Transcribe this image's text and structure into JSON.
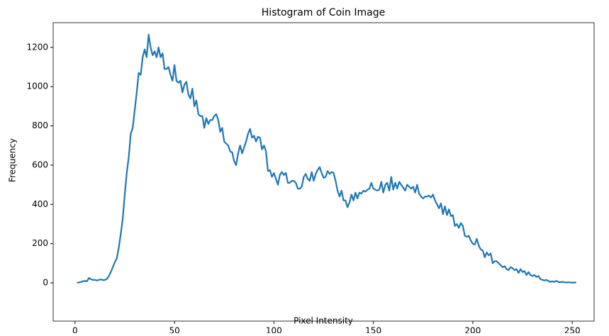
{
  "chart_data": {
    "type": "line",
    "title": "Histogram of Coin Image",
    "x_label": "Pixel Intensity",
    "y_label": "Frequency",
    "color": "#1f77b4",
    "grid": false,
    "x": [
      1,
      2,
      3,
      4,
      5,
      6,
      7,
      8,
      9,
      10,
      11,
      12,
      13,
      14,
      15,
      16,
      17,
      18,
      19,
      20,
      21,
      22,
      23,
      24,
      25,
      26,
      27,
      28,
      29,
      30,
      31,
      32,
      33,
      34,
      35,
      36,
      37,
      38,
      39,
      40,
      41,
      42,
      43,
      44,
      45,
      46,
      47,
      48,
      49,
      50,
      51,
      52,
      53,
      54,
      55,
      56,
      57,
      58,
      59,
      60,
      61,
      62,
      63,
      64,
      65,
      66,
      67,
      68,
      69,
      70,
      71,
      72,
      73,
      74,
      75,
      76,
      77,
      78,
      79,
      80,
      81,
      82,
      83,
      84,
      85,
      86,
      87,
      88,
      89,
      90,
      91,
      92,
      93,
      94,
      95,
      96,
      97,
      98,
      99,
      100,
      101,
      102,
      103,
      104,
      105,
      106,
      107,
      108,
      109,
      110,
      111,
      112,
      113,
      114,
      115,
      116,
      117,
      118,
      119,
      120,
      121,
      122,
      123,
      124,
      125,
      126,
      127,
      128,
      129,
      130,
      131,
      132,
      133,
      134,
      135,
      136,
      137,
      138,
      139,
      140,
      141,
      142,
      143,
      144,
      145,
      146,
      147,
      148,
      149,
      150,
      151,
      152,
      153,
      154,
      155,
      156,
      157,
      158,
      159,
      160,
      161,
      162,
      163,
      164,
      165,
      166,
      167,
      168,
      169,
      170,
      171,
      172,
      173,
      174,
      175,
      176,
      177,
      178,
      179,
      180,
      181,
      182,
      183,
      184,
      185,
      186,
      187,
      188,
      189,
      190,
      191,
      192,
      193,
      194,
      195,
      196,
      197,
      198,
      199,
      200,
      201,
      202,
      203,
      204,
      205,
      206,
      207,
      208,
      209,
      210,
      211,
      212,
      213,
      214,
      215,
      216,
      217,
      218,
      219,
      220,
      221,
      222,
      223,
      224,
      225,
      226,
      227,
      228,
      229,
      230,
      231,
      232,
      233,
      234,
      235,
      236,
      237,
      238,
      239,
      240,
      241,
      242,
      243,
      244,
      245,
      246,
      247,
      248,
      249,
      250,
      251,
      252
    ],
    "values": [
      0,
      2,
      5,
      8,
      10,
      8,
      25,
      18,
      15,
      15,
      12,
      15,
      18,
      14,
      15,
      20,
      35,
      55,
      80,
      105,
      125,
      180,
      250,
      330,
      450,
      560,
      640,
      760,
      790,
      880,
      970,
      1070,
      1060,
      1150,
      1190,
      1150,
      1265,
      1200,
      1160,
      1180,
      1150,
      1200,
      1150,
      1170,
      1090,
      1090,
      1100,
      1060,
      1030,
      1110,
      1030,
      1020,
      1030,
      970,
      1010,
      1025,
      960,
      940,
      990,
      900,
      930,
      860,
      850,
      850,
      790,
      840,
      810,
      830,
      830,
      850,
      860,
      830,
      770,
      790,
      720,
      710,
      700,
      670,
      665,
      620,
      600,
      660,
      700,
      660,
      690,
      720,
      760,
      785,
      740,
      750,
      720,
      745,
      740,
      680,
      700,
      670,
      570,
      575,
      540,
      560,
      530,
      500,
      550,
      565,
      550,
      560,
      510,
      510,
      520,
      520,
      510,
      480,
      480,
      490,
      540,
      555,
      530,
      520,
      565,
      520,
      555,
      575,
      590,
      560,
      535,
      540,
      570,
      555,
      565,
      560,
      520,
      470,
      440,
      470,
      420,
      420,
      385,
      410,
      450,
      420,
      460,
      430,
      460,
      455,
      470,
      465,
      475,
      480,
      510,
      480,
      475,
      470,
      475,
      515,
      460,
      500,
      510,
      470,
      540,
      475,
      510,
      480,
      515,
      500,
      485,
      470,
      500,
      490,
      480,
      490,
      460,
      500,
      455,
      440,
      430,
      440,
      440,
      445,
      435,
      450,
      420,
      400,
      380,
      405,
      350,
      390,
      345,
      375,
      340,
      345,
      290,
      300,
      280,
      305,
      290,
      240,
      235,
      240,
      215,
      200,
      195,
      225,
      190,
      170,
      165,
      130,
      155,
      140,
      150,
      100,
      110,
      110,
      100,
      90,
      80,
      85,
      70,
      65,
      80,
      75,
      65,
      70,
      50,
      70,
      55,
      60,
      40,
      55,
      40,
      35,
      40,
      30,
      35,
      20,
      15,
      12,
      15,
      10,
      5,
      8,
      5,
      10,
      5,
      3,
      5,
      3,
      2,
      3,
      2,
      1,
      2,
      1
    ],
    "xlim": [
      -11,
      261
    ],
    "xticks": [
      0,
      50,
      100,
      150,
      200,
      250
    ],
    "ylim": [
      -195,
      1326
    ],
    "yticks": [
      0,
      200,
      400,
      600,
      800,
      1000,
      1200
    ]
  }
}
